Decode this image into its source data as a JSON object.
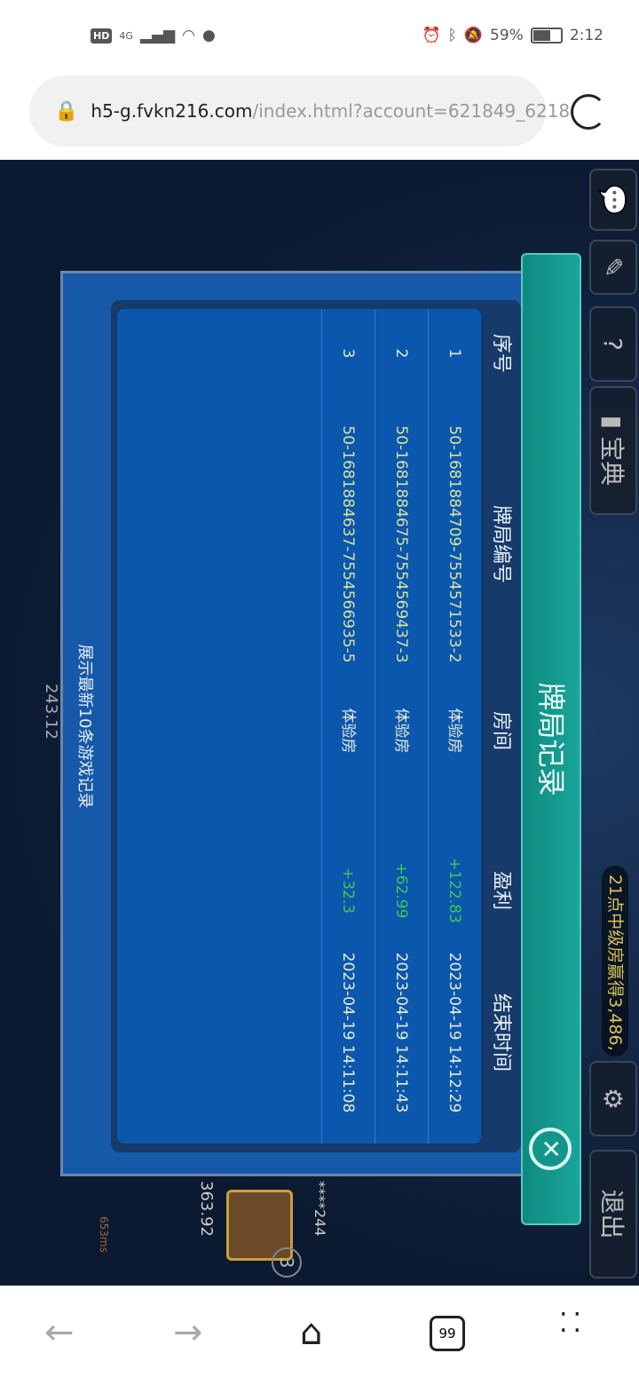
{
  "status_bar": {
    "left": [
      "HD",
      "4G"
    ],
    "battery": "59%",
    "time": "2:12",
    "battery_level": 0.59
  },
  "browser": {
    "url_host": "h5-g.fvkn216.com",
    "url_path": "/index.html?account=621849_6218",
    "tabs_count": "99"
  },
  "game": {
    "side_buttons": {
      "guide": "宝典",
      "exit": "退出"
    },
    "ticker": "21点中级房赢得3,486,",
    "seat_score": "243.12",
    "player": {
      "name": "****244",
      "balance": "363.92",
      "seat": "3",
      "ping": "653ms"
    }
  },
  "dialog": {
    "title": "牌局记录",
    "headers": [
      "序号",
      "牌局编号",
      "房间",
      "盈利",
      "结束时间"
    ],
    "rows": [
      {
        "no": "1",
        "id": "50-1681884709-7554571533-2",
        "room": "体验房",
        "profit": "+122.83",
        "end": "2023-04-19 14:12:29"
      },
      {
        "no": "2",
        "id": "50-1681884675-7554569437-3",
        "room": "体验房",
        "profit": "+62.99",
        "end": "2023-04-19 14:11:43"
      },
      {
        "no": "3",
        "id": "50-1681884637-7554566935-5",
        "room": "体验房",
        "profit": "+32.3",
        "end": "2023-04-19 14:11:08"
      }
    ],
    "footer": "展示最新10条游戏记录",
    "colors": {
      "ribbon": "#1aa59a",
      "panel": "#0b57ae",
      "profit": "#3fc94e",
      "id": "#d9e39a"
    }
  }
}
